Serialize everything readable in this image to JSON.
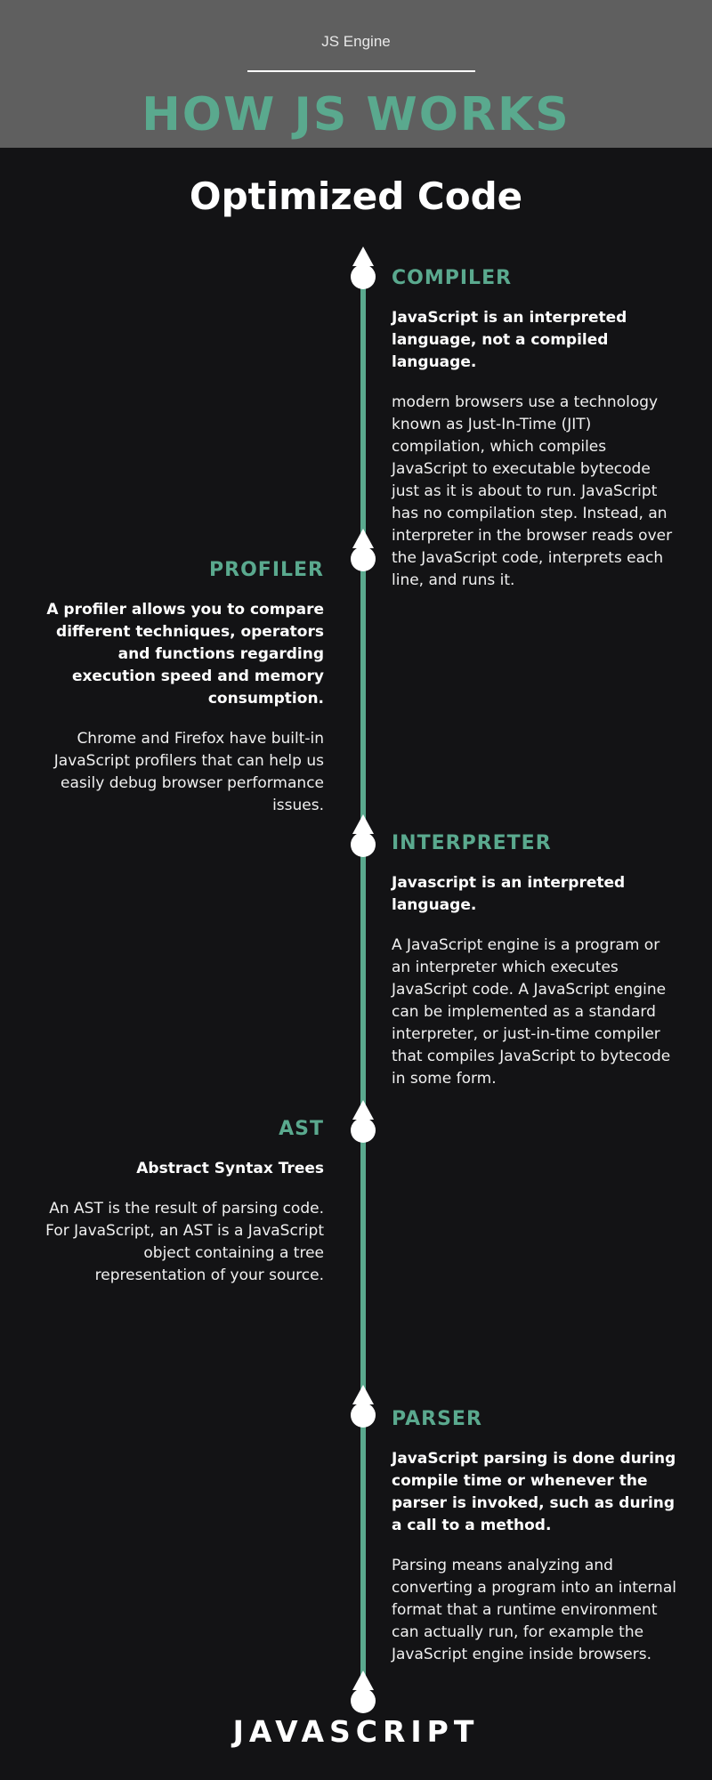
{
  "header": {
    "kicker": "JS Engine",
    "title": "HOW JS WORKS"
  },
  "subtitle": "Optimized Code",
  "sections": [
    {
      "title": "COMPILER",
      "lead": "JavaScript is an interpreted language, not a compiled language.",
      "body": "modern browsers use a technology known as Just-In-Time (JIT) compilation, which compiles JavaScript to executable bytecode just as it is about to run. JavaScript has no compilation step. Instead, an interpreter in the browser reads over the JavaScript code, interprets each line, and runs it."
    },
    {
      "title": "PROFILER",
      "lead": "A profiler allows you to compare different techniques, operators and functions regarding execution speed and memory consumption.",
      "body": "Chrome and Firefox have built-in JavaScript profilers that can help us easily debug browser performance issues."
    },
    {
      "title": "INTERPRETER",
      "lead": "Javascript is an interpreted language.",
      "body": "A JavaScript engine is a program or an interpreter which executes JavaScript code. A JavaScript engine can be implemented as a standard interpreter, or just-in-time compiler that compiles JavaScript to bytecode in some form."
    },
    {
      "title": "AST",
      "lead": "Abstract Syntax Trees",
      "body": "An AST is the result of parsing code. For JavaScript, an AST is a JavaScript object containing a tree representation of your source."
    },
    {
      "title": "PARSER",
      "lead": "JavaScript parsing is done during compile time or whenever the parser is invoked, such as during a call to a method.",
      "body": "Parsing means analyzing and converting a program into an internal format that a runtime environment can actually run, for example the JavaScript engine inside browsers."
    }
  ],
  "footer": "JAVASCRIPT",
  "colors": {
    "accent": "#5aa98e",
    "background": "#131315",
    "header_band": "#5f5f5f"
  }
}
